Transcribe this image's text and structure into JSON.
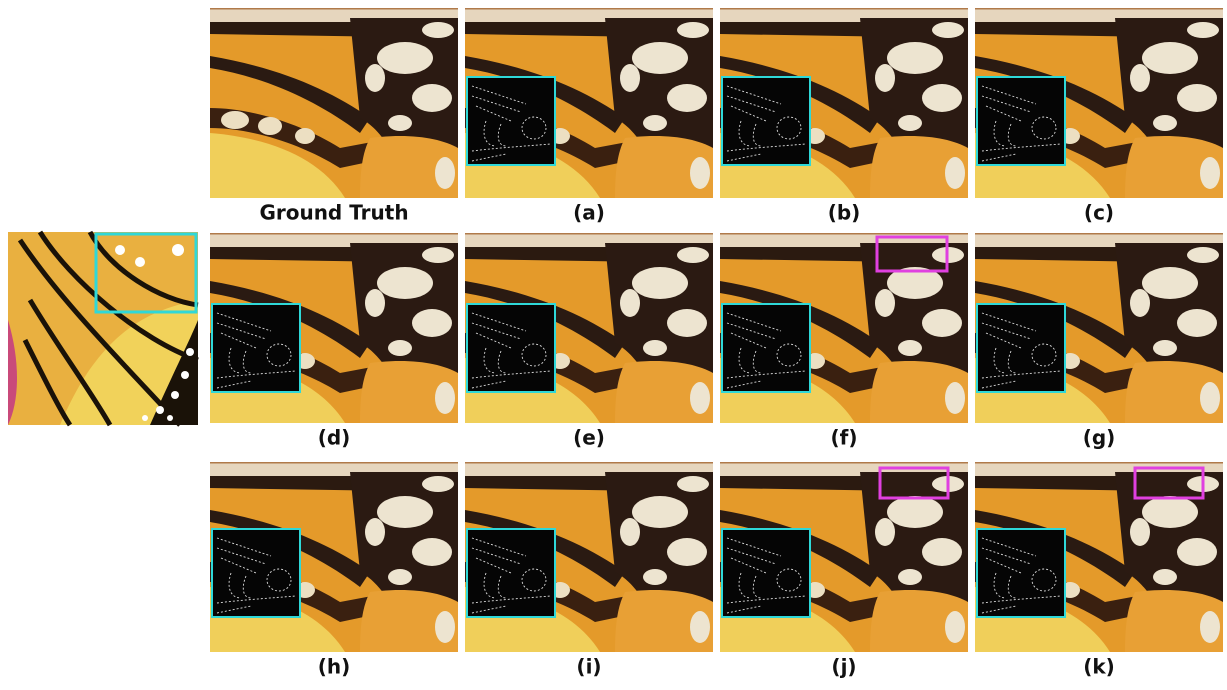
{
  "figure": {
    "panels": [
      {
        "label": "Ground Truth"
      },
      {
        "label": "(a)"
      },
      {
        "label": "(b)"
      },
      {
        "label": "(c)"
      },
      {
        "label": "(d)"
      },
      {
        "label": "(e)"
      },
      {
        "label": "(f)"
      },
      {
        "label": "(g)"
      },
      {
        "label": "(h)"
      },
      {
        "label": "(i)"
      },
      {
        "label": "(j)"
      },
      {
        "label": "(k)"
      }
    ]
  }
}
